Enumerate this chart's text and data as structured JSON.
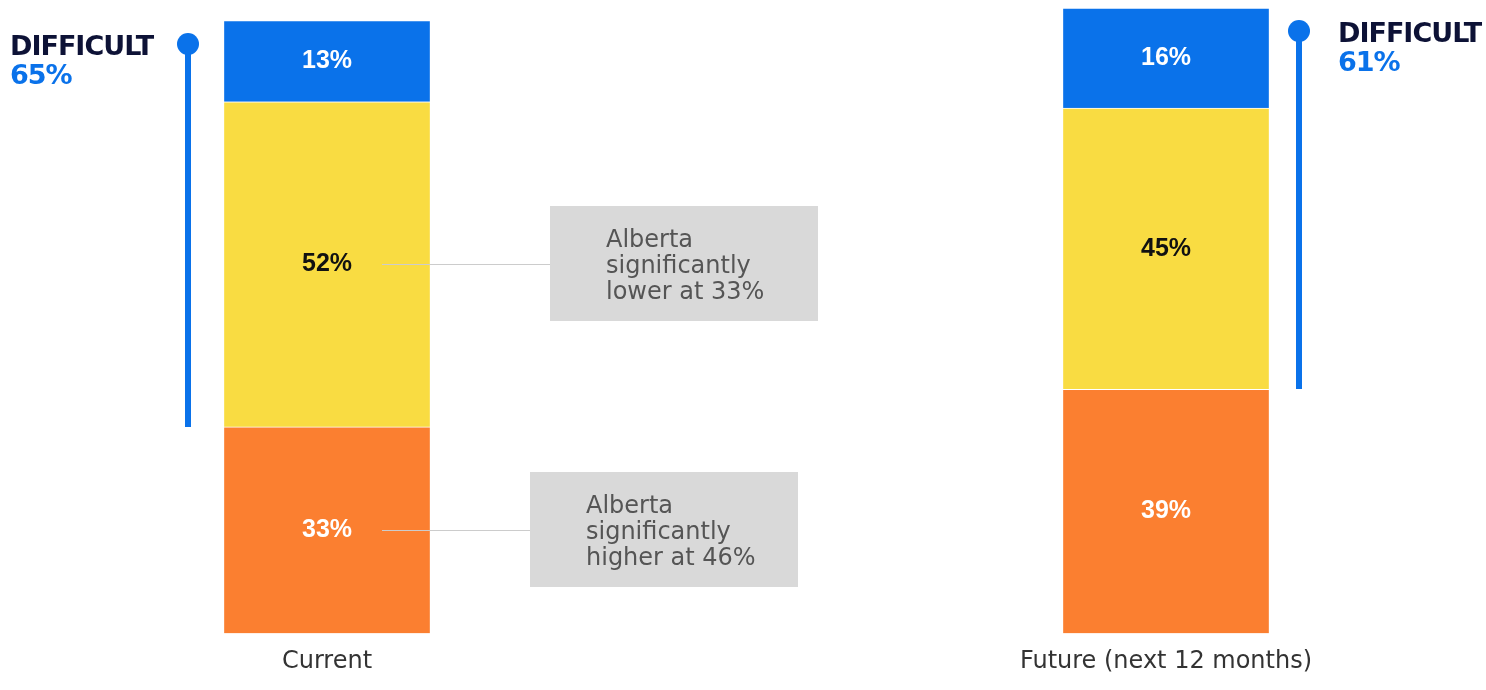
{
  "chart_data": {
    "type": "bar",
    "stacked": true,
    "tick_labels": "x",
    "categories": [
      "Current",
      "Future (next 12 months)"
    ],
    "series": [
      {
        "color": "#fb7f30",
        "values": [
          33,
          39
        ],
        "value_labels": [
          "33%",
          "39%"
        ]
      },
      {
        "color": "#f9dc42",
        "values": [
          52,
          45
        ],
        "value_labels": [
          "52%",
          "45%"
        ]
      },
      {
        "color": "#0a72ea",
        "values": [
          13,
          16
        ],
        "value_labels": [
          "13%",
          "16%"
        ]
      }
    ],
    "annotations": [
      "DIFFICULT\n65%",
      "DIFFICULT\n61%",
      "Alberta significantly lower at 33%",
      "Alberta significantly higher at 46%"
    ]
  }
}
